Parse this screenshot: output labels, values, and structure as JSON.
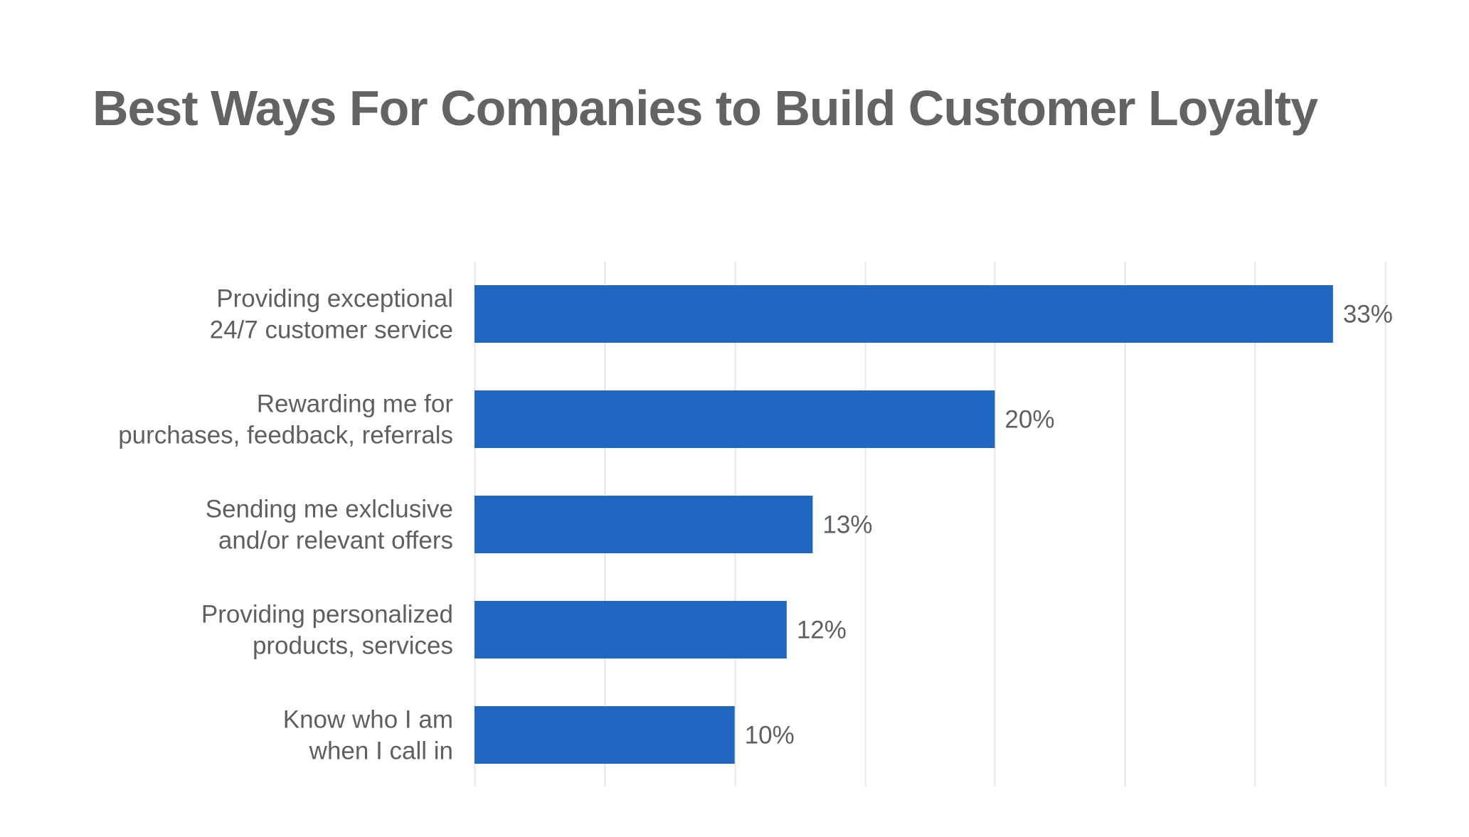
{
  "chart_data": {
    "type": "bar",
    "orientation": "horizontal",
    "title": "Best Ways For Companies to Build Customer Loyalty",
    "categories": [
      [
        "Providing exceptional",
        "24/7 customer service"
      ],
      [
        "Rewarding me for",
        "purchases, feedback, referrals"
      ],
      [
        "Sending me exlclusive",
        "and/or relevant offers"
      ],
      [
        "Providing personalized",
        "products, services"
      ],
      [
        "Know who I am",
        "when I call in"
      ]
    ],
    "values": [
      33,
      20,
      13,
      12,
      10
    ],
    "value_labels": [
      "33%",
      "20%",
      "13%",
      "12%",
      "10%"
    ],
    "xlim": [
      0,
      35
    ],
    "grid": true,
    "grid_step": 5,
    "bar_color": "#1f67c1",
    "grid_color": "#e6e6e6",
    "text_color": "#5f5f5f",
    "xlabel": "",
    "ylabel": ""
  }
}
